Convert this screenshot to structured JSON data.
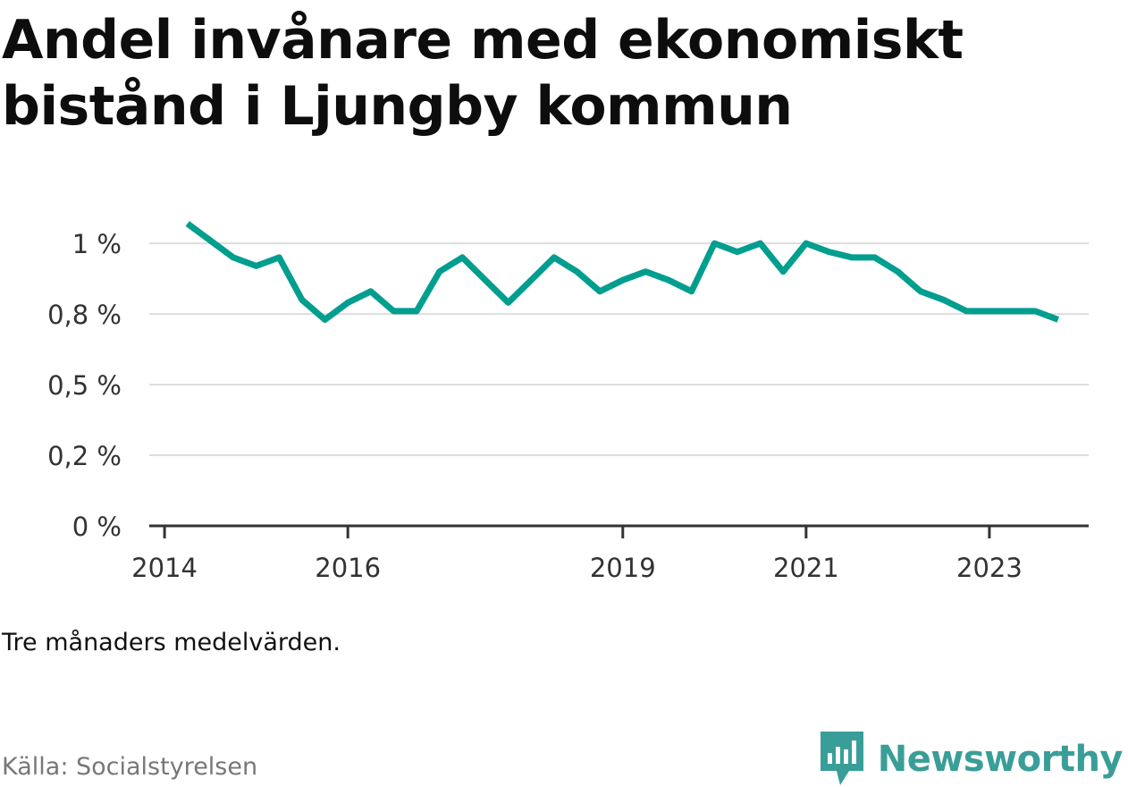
{
  "title": "Andel invånare med ekonomiskt bistånd i Ljungby kommun",
  "note": "Tre månaders medelvärden.",
  "source": "Källa: Socialstyrelsen",
  "brand": {
    "name": "Newsworthy",
    "icon": "newsworthy-logo-icon",
    "color": "#3a9e98"
  },
  "colors": {
    "line": "#009e8f",
    "grid": "#dddddd",
    "axis": "#333333"
  },
  "chart_data": {
    "type": "line",
    "title": "Andel invånare med ekonomiskt bistånd i Ljungby kommun",
    "xlabel": "",
    "ylabel": "",
    "ylim": [
      0,
      1.07
    ],
    "xlim": [
      "2013-11",
      "2024-02"
    ],
    "y_ticks": [
      {
        "value": 0,
        "label": "0 %"
      },
      {
        "value": 0.25,
        "label": "0,2 %"
      },
      {
        "value": 0.5,
        "label": "0,5 %"
      },
      {
        "value": 0.75,
        "label": "0,8 %"
      },
      {
        "value": 1.0,
        "label": "1 %"
      }
    ],
    "x_ticks": [
      {
        "value": "2014-01",
        "label": "2014"
      },
      {
        "value": "2016-01",
        "label": "2016"
      },
      {
        "value": "2019-01",
        "label": "2019"
      },
      {
        "value": "2021-01",
        "label": "2021"
      },
      {
        "value": "2023-01",
        "label": "2023"
      }
    ],
    "grid": true,
    "series": [
      {
        "points": [
          [
            "2014-04",
            1.07
          ],
          [
            "2014-07",
            1.01
          ],
          [
            "2014-10",
            0.95
          ],
          [
            "2015-01",
            0.92
          ],
          [
            "2015-04",
            0.95
          ],
          [
            "2015-07",
            0.8
          ],
          [
            "2015-10",
            0.73
          ],
          [
            "2016-01",
            0.79
          ],
          [
            "2016-04",
            0.83
          ],
          [
            "2016-07",
            0.76
          ],
          [
            "2016-10",
            0.76
          ],
          [
            "2017-01",
            0.9
          ],
          [
            "2017-04",
            0.95
          ],
          [
            "2017-07",
            0.87
          ],
          [
            "2017-10",
            0.79
          ],
          [
            "2018-01",
            0.87
          ],
          [
            "2018-04",
            0.95
          ],
          [
            "2018-07",
            0.9
          ],
          [
            "2018-10",
            0.83
          ],
          [
            "2019-01",
            0.87
          ],
          [
            "2019-04",
            0.9
          ],
          [
            "2019-07",
            0.87
          ],
          [
            "2019-10",
            0.83
          ],
          [
            "2020-01",
            1.0
          ],
          [
            "2020-04",
            0.97
          ],
          [
            "2020-07",
            1.0
          ],
          [
            "2020-10",
            0.9
          ],
          [
            "2021-01",
            1.0
          ],
          [
            "2021-04",
            0.97
          ],
          [
            "2021-07",
            0.95
          ],
          [
            "2021-10",
            0.95
          ],
          [
            "2022-01",
            0.9
          ],
          [
            "2022-04",
            0.83
          ],
          [
            "2022-07",
            0.8
          ],
          [
            "2022-10",
            0.76
          ],
          [
            "2023-01",
            0.76
          ],
          [
            "2023-04",
            0.76
          ],
          [
            "2023-07",
            0.76
          ],
          [
            "2023-10",
            0.73
          ]
        ]
      }
    ]
  }
}
